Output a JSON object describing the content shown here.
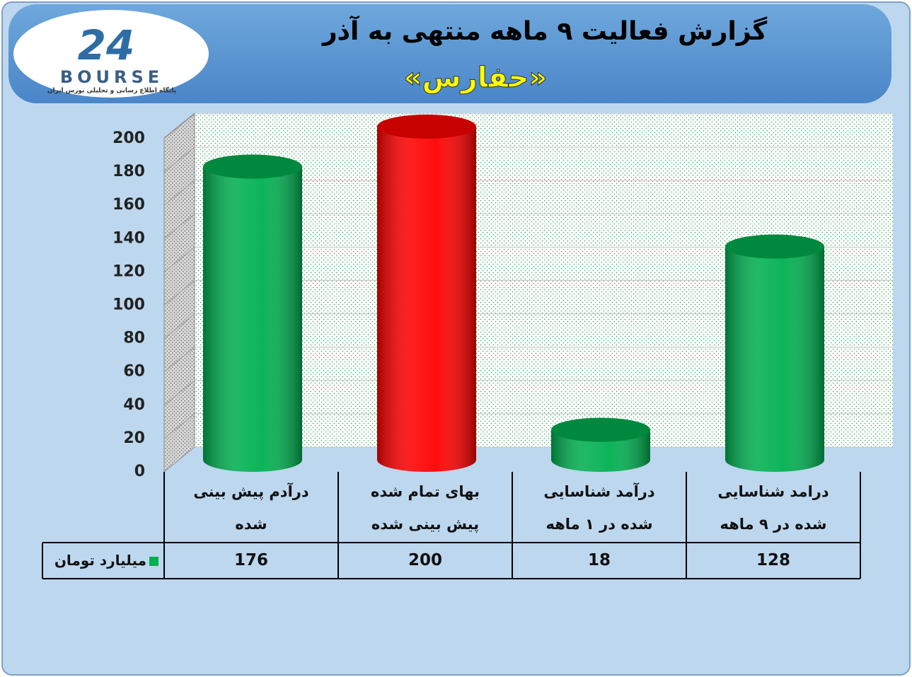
{
  "logo": {
    "number": "24",
    "name": "BOURSE",
    "tagline": "پایگاه اطلاع رسانی و تحلیلی بورس ایران"
  },
  "chart_data": {
    "type": "bar",
    "title": "گزارش فعالیت ۹ ماهه منتهی به آذر",
    "subtitle": "«حفارس»",
    "categories": [
      "درآدم پیش بینی شده",
      "بهای تمام شده پیش بینی شده",
      "درآمد شناسایی شده در ۱ ماهه",
      "درامد شناسایی شده در ۹ ماهه"
    ],
    "series": [
      {
        "name": "میلیارد تومان",
        "color": "#00b050",
        "point_colors": [
          "#00b050",
          "#ff0000",
          "#00b050",
          "#00b050"
        ],
        "values": [
          176,
          200,
          18,
          128
        ]
      }
    ],
    "ylim": [
      0,
      200
    ],
    "yticks": [
      0,
      20,
      40,
      60,
      80,
      100,
      120,
      140,
      160,
      180,
      200
    ],
    "grid": true,
    "data_table": true
  }
}
